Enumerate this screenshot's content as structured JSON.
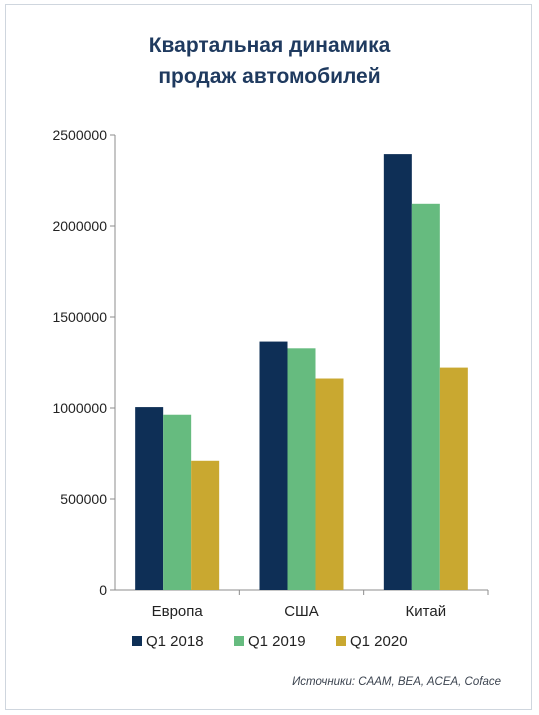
{
  "title_line1": "Квартальная динамика",
  "title_line2": "продаж автомобилей",
  "source": "Источники: CAAM, BEA, ACEA, Coface",
  "chart_data": {
    "type": "bar",
    "categories": [
      "Европа",
      "США",
      "Китай"
    ],
    "series": [
      {
        "name": "Q1 2018",
        "color": "#0e2f56",
        "values": [
          1005000,
          1365000,
          2395000
        ]
      },
      {
        "name": "Q1 2019",
        "color": "#66bb7f",
        "values": [
          963000,
          1328000,
          2122000
        ]
      },
      {
        "name": "Q1 2020",
        "color": "#c9a830",
        "values": [
          710000,
          1162000,
          1222000
        ]
      }
    ],
    "yticks": [
      "0",
      "500000",
      "1000000",
      "1500000",
      "2000000",
      "2500000"
    ],
    "ylim": [
      0,
      2500000
    ],
    "grid": false,
    "legend": "bottom"
  }
}
